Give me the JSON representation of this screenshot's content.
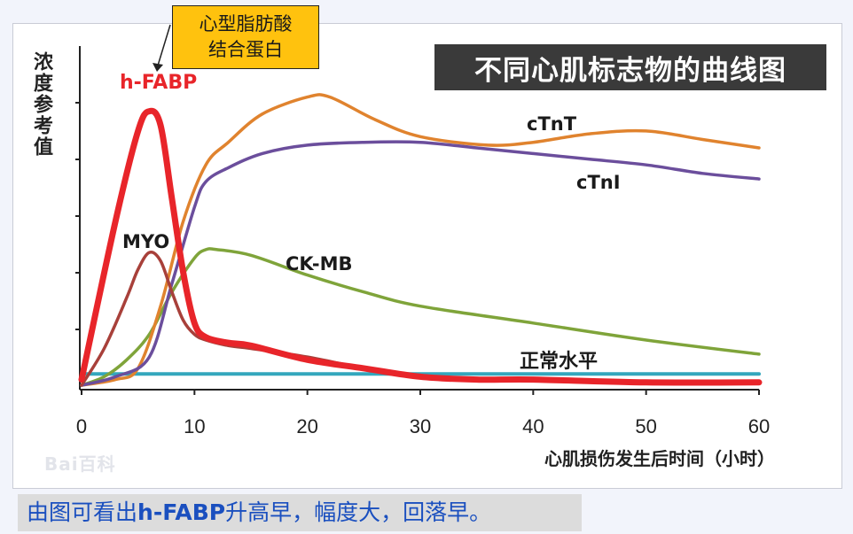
{
  "callout": {
    "line1": "心型脂肪酸",
    "line2": "结合蛋白"
  },
  "caption": {
    "pre": "由图可看出",
    "bold": "h-FABP",
    "post": "升高早，幅度大，回落早。"
  },
  "watermark": "Bai百科",
  "chart_data": {
    "type": "line",
    "title": "不同心肌标志物的曲线图",
    "ylabel": "浓度参考值",
    "xlabel": "心肌损伤发生后时间（小时）",
    "xlim": [
      0,
      60
    ],
    "x_ticks": [
      0,
      10,
      20,
      30,
      40,
      50,
      60
    ],
    "ylim": [
      0,
      100
    ],
    "grid": false,
    "series": [
      {
        "name": "h-FABP",
        "color": "#e8252a",
        "width": 7,
        "x": [
          0,
          3,
          5,
          6,
          7,
          8,
          9,
          10,
          11,
          13,
          15,
          20,
          25,
          30,
          35,
          40,
          50,
          60
        ],
        "y": [
          2,
          58,
          90,
          97,
          92,
          66,
          40,
          22,
          17,
          15,
          14,
          9,
          6,
          3,
          2,
          2,
          1,
          1
        ]
      },
      {
        "name": "MYO",
        "color": "#a8403a",
        "width": 3.5,
        "x": [
          0,
          2,
          4,
          5,
          6,
          7,
          8,
          9,
          10,
          11,
          13,
          15,
          20,
          25,
          30,
          40,
          60
        ],
        "y": [
          0,
          13,
          31,
          41,
          47,
          44,
          33,
          23,
          18,
          16,
          14,
          13,
          10,
          6,
          3,
          2,
          1
        ]
      },
      {
        "name": "CK-MB",
        "color": "#7fa43a",
        "width": 3.5,
        "x": [
          0,
          2,
          4,
          6,
          8,
          10,
          11,
          12,
          15,
          20,
          25,
          30,
          40,
          50,
          60
        ],
        "y": [
          0,
          3,
          9,
          18,
          33,
          45,
          48,
          48,
          46,
          39,
          33,
          28,
          22,
          16,
          11
        ]
      },
      {
        "name": "cTnT",
        "color": "#e0832e",
        "width": 3.5,
        "x": [
          0,
          3,
          5,
          7,
          9,
          11,
          13,
          16,
          20,
          22,
          26,
          30,
          36,
          40,
          45,
          50,
          55,
          60
        ],
        "y": [
          0,
          2,
          6,
          28,
          58,
          78,
          86,
          96,
          102,
          102,
          94,
          88,
          85,
          86,
          89,
          90,
          87,
          84
        ]
      },
      {
        "name": "cTnI",
        "color": "#6b4e9c",
        "width": 3.5,
        "x": [
          0,
          3,
          6,
          8,
          10,
          11,
          13,
          16,
          20,
          25,
          30,
          35,
          40,
          45,
          50,
          55,
          60
        ],
        "y": [
          0,
          3,
          10,
          36,
          63,
          72,
          77,
          82,
          85,
          86,
          86,
          84,
          82,
          80,
          78,
          75,
          73
        ]
      },
      {
        "name": "正常水平",
        "color": "#33a7bd",
        "width": 4,
        "x": [
          0,
          60
        ],
        "y": [
          4,
          4
        ]
      }
    ],
    "labels": [
      {
        "series": "h-FABP",
        "text": "h-FABP",
        "color": "#e8252a"
      },
      {
        "series": "MYO",
        "text": "MYO",
        "color": "#1a1a1a"
      },
      {
        "series": "CK-MB",
        "text": "CK-MB",
        "color": "#1a1a1a"
      },
      {
        "series": "cTnT",
        "text": "cTnT",
        "color": "#1a1a1a"
      },
      {
        "series": "cTnI",
        "text": "cTnI",
        "color": "#1a1a1a"
      },
      {
        "series": "正常水平",
        "text": "正常水平",
        "color": "#1a1a1a"
      }
    ]
  }
}
